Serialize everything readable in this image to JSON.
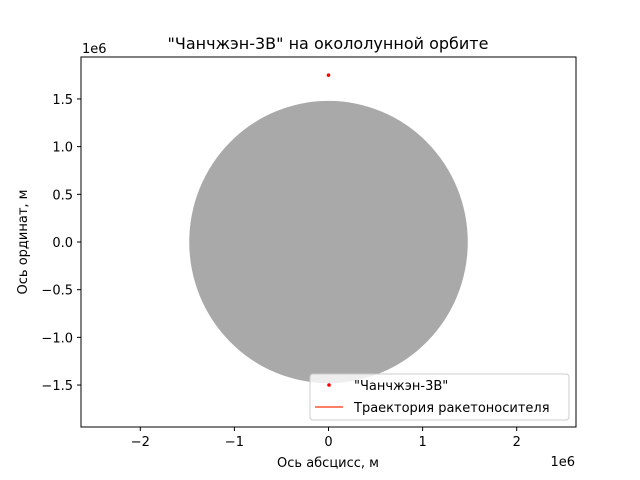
{
  "chart_data": {
    "type": "scatter",
    "title": "\"Чанчжэн-3В\" на окололунной орбите",
    "xlabel": "Ось абсцисс, м",
    "ylabel": "Ось ординат, м",
    "x_offset_text": "1e6",
    "y_offset_text": "1e6",
    "xlim": [
      -2.63,
      2.63
    ],
    "ylim": [
      -1.94,
      1.94
    ],
    "scale_factor": 1000000,
    "x_ticks": [
      {
        "value": -2,
        "label": "−2"
      },
      {
        "value": -1,
        "label": "−1"
      },
      {
        "value": 0,
        "label": "0"
      },
      {
        "value": 1,
        "label": "1"
      },
      {
        "value": 2,
        "label": "2"
      }
    ],
    "y_ticks": [
      {
        "value": -1.5,
        "label": "−1.5"
      },
      {
        "value": -1.0,
        "label": "−1.0"
      },
      {
        "value": -0.5,
        "label": "−0.5"
      },
      {
        "value": 0.0,
        "label": "0.0"
      },
      {
        "value": 0.5,
        "label": "0.5"
      },
      {
        "value": 1.0,
        "label": "1.0"
      },
      {
        "value": 1.5,
        "label": "1.5"
      }
    ],
    "moon": {
      "x": 0,
      "y": 0,
      "radius": 1.48,
      "color": "#a9a9a9"
    },
    "series": [
      {
        "name": "\"Чанчжэн-3В\"",
        "kind": "point",
        "color": "#ff0000",
        "x": [
          0.0
        ],
        "y": [
          1.75
        ]
      },
      {
        "name": "Траектория ракетоносителя",
        "kind": "line",
        "color": "#ff5733",
        "x": [],
        "y": []
      }
    ],
    "legend": "lower-right",
    "grid": false
  }
}
